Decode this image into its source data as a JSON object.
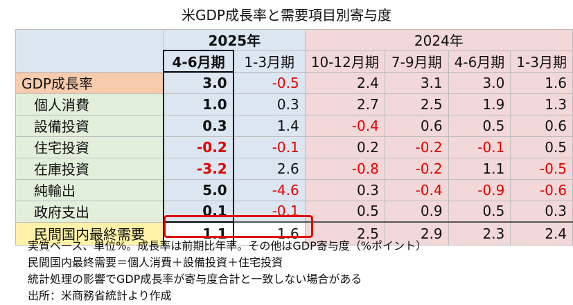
{
  "title": "米GDP成長率と需要項目別寄与度",
  "header": {
    "year_2025": "2025年",
    "year_2024": "2024年",
    "quarters": [
      "4-6月期",
      "1-3月期",
      "10-12月期",
      "7-9月期",
      "4-6月期",
      "1-3月期"
    ]
  },
  "rows": [
    {
      "label": "GDP成長率",
      "values": [
        "3.0",
        "-0.5",
        "2.4",
        "3.1",
        "3.0",
        "1.6"
      ]
    },
    {
      "label": "個人消費",
      "values": [
        "1.0",
        "0.3",
        "2.7",
        "2.5",
        "1.9",
        "1.3"
      ]
    },
    {
      "label": "設備投資",
      "values": [
        "0.3",
        "1.4",
        "-0.4",
        "0.6",
        "0.5",
        "0.6"
      ]
    },
    {
      "label": "住宅投資",
      "values": [
        "-0.2",
        "-0.1",
        "0.2",
        "-0.2",
        "-0.1",
        "0.5"
      ]
    },
    {
      "label": "在庫投資",
      "values": [
        "-3.2",
        "2.6",
        "-0.8",
        "-0.2",
        "1.1",
        "-0.5"
      ]
    },
    {
      "label": "純輸出",
      "values": [
        "5.0",
        "-4.6",
        "0.3",
        "-0.4",
        "-0.9",
        "-0.6"
      ]
    },
    {
      "label": "政府支出",
      "values": [
        "0.1",
        "-0.1",
        "0.5",
        "0.9",
        "0.5",
        "0.3"
      ]
    },
    {
      "label": "民間国内最終需要",
      "values": [
        "1.1",
        "1.6",
        "2.5",
        "2.9",
        "2.3",
        "2.4"
      ]
    }
  ],
  "notes": [
    "実質ベース、単位%。成長率は前期比年率。その他はGDP寄与度（%ポイント）",
    "民間国内最終需要＝個人消費＋設備投資＋住宅投資",
    "統計処理の影響でGDP成長率が寄与度合計と一致しない場合がある",
    "出所：米商務省統計より作成"
  ],
  "colors": {
    "header_2025": "#dbe6f1",
    "header_2024": "#f2d8d8",
    "gdp_label": "#f8cbad",
    "component_label": "#e2efda",
    "demand_label": "#fff2a8",
    "negative": "#e00000",
    "highlight_box": "#e00000"
  }
}
